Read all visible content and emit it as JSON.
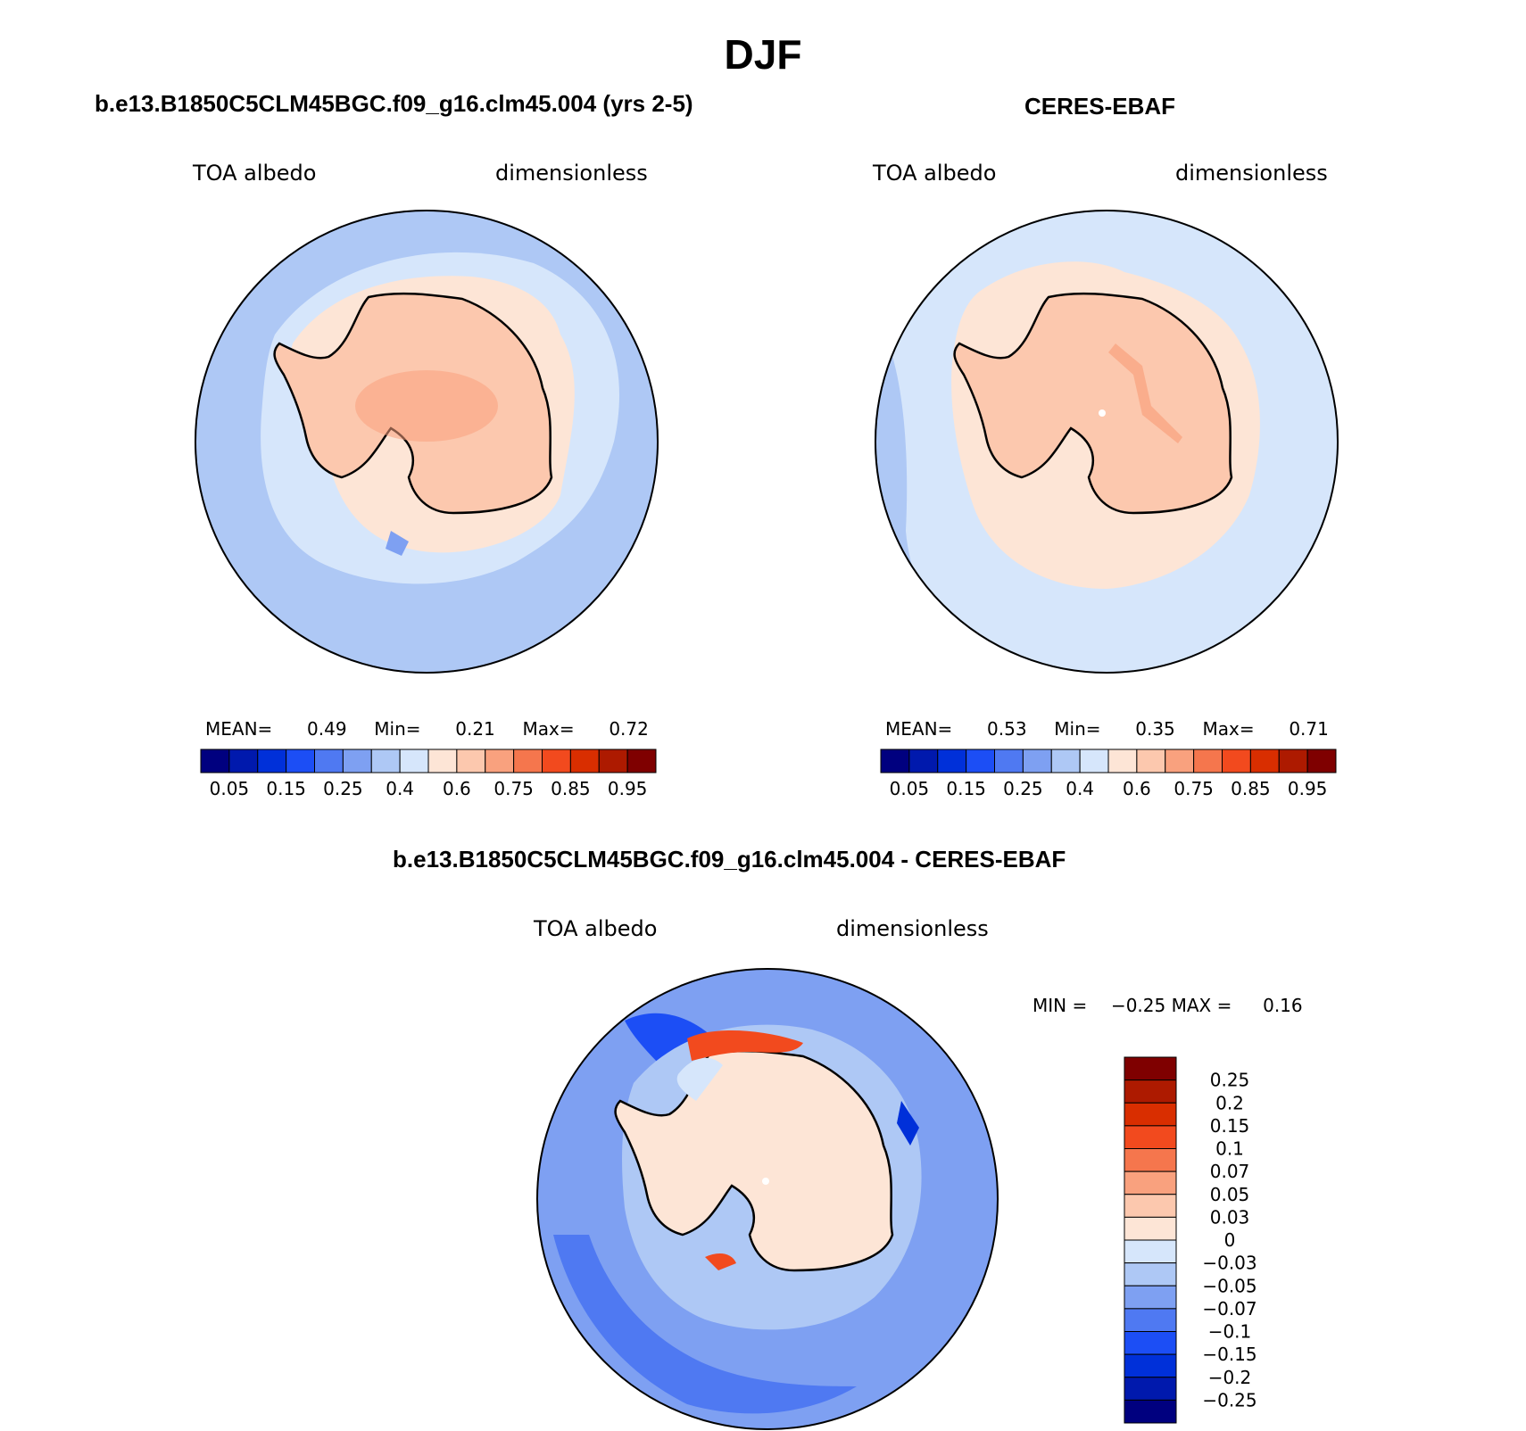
{
  "title": "DJF",
  "panels": {
    "model": {
      "title": "b.e13.B1850C5CLM45BGC.f09_g16.clm45.004 (yrs 2-5)",
      "variable": "TOA albedo",
      "units": "dimensionless",
      "stats": {
        "mean_label": "MEAN=",
        "mean": "0.49",
        "min_label": "Min=",
        "min": "0.21",
        "max_label": "Max=",
        "max": "0.72"
      }
    },
    "obs": {
      "title": "CERES-EBAF",
      "variable": "TOA albedo",
      "units": "dimensionless",
      "stats": {
        "mean_label": "MEAN=",
        "mean": "0.53",
        "min_label": "Min=",
        "min": "0.35",
        "max_label": "Max=",
        "max": "0.71"
      }
    },
    "diff": {
      "title": "b.e13.B1850C5CLM45BGC.f09_g16.clm45.004 - CERES-EBAF",
      "variable": "TOA albedo",
      "units": "dimensionless",
      "stats": {
        "min_label": "MIN =",
        "min": "−0.25",
        "max_label": "MAX =",
        "max": "0.16"
      }
    }
  },
  "colorbars": {
    "abs": {
      "colors": [
        "#00007f",
        "#0019ad",
        "#0030d9",
        "#1c4ef5",
        "#4f79f2",
        "#7ea0f2",
        "#aec8f5",
        "#d6e6fb",
        "#fde5d6",
        "#fcc8ae",
        "#f9a17e",
        "#f5764d",
        "#f24a1e",
        "#d92e00",
        "#ad1a00",
        "#7f0000"
      ],
      "ticks": [
        "0.05",
        "0.15",
        "0.25",
        "0.4",
        "0.6",
        "0.75",
        "0.85",
        "0.95"
      ]
    },
    "diff": {
      "colors": [
        "#00007f",
        "#0019ad",
        "#0030d9",
        "#1c4ef5",
        "#4f79f2",
        "#7ea0f2",
        "#aec8f5",
        "#d6e6fb",
        "#fde5d6",
        "#fcc8ae",
        "#f9a17e",
        "#f5764d",
        "#f24a1e",
        "#d92e00",
        "#ad1a00",
        "#7f0000"
      ],
      "ticks": [
        "0.25",
        "0.2",
        "0.15",
        "0.1",
        "0.07",
        "0.05",
        "0.03",
        "0",
        "−0.03",
        "−0.05",
        "−0.07",
        "−0.1",
        "−0.15",
        "−0.2",
        "−0.25"
      ]
    }
  }
}
